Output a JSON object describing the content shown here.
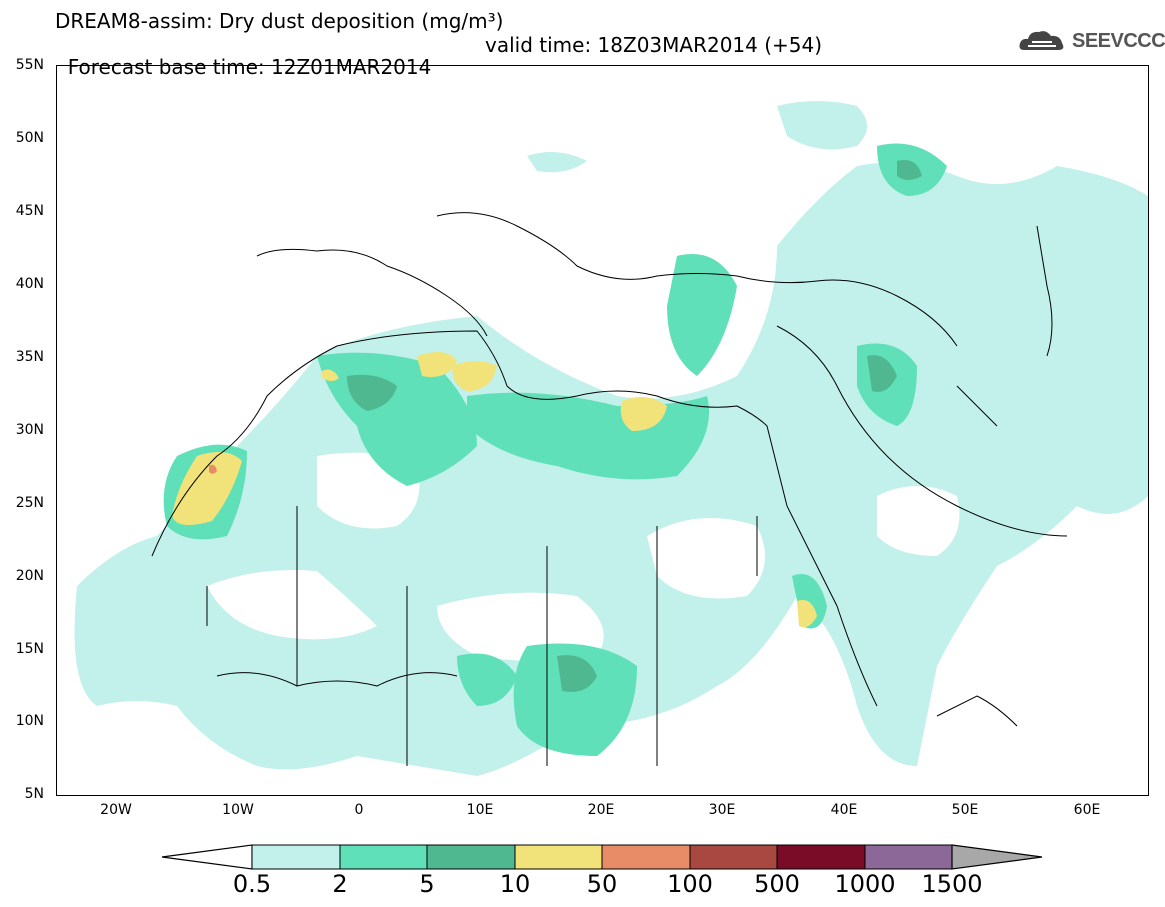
{
  "title": {
    "line1": "DREAM8-assim: Dry dust deposition (mg/m³)",
    "line2_base": "Forecast base time: 12Z01MAR2014",
    "line2_valid": "valid time: 18Z03MAR2014 (+54)"
  },
  "logo_text": "SEEVCCC",
  "lat_labels": [
    "55N",
    "50N",
    "45N",
    "40N",
    "35N",
    "30N",
    "25N",
    "20N",
    "15N",
    "10N",
    "5N"
  ],
  "lon_labels": [
    "20W",
    "10W",
    "0",
    "10E",
    "20E",
    "30E",
    "40E",
    "50E",
    "60E"
  ],
  "colorbar": {
    "labels": [
      "0.5",
      "2",
      "5",
      "10",
      "50",
      "100",
      "500",
      "1000",
      "1500"
    ],
    "colors": [
      "#c2f0ea",
      "#5fe0b8",
      "#50b890",
      "#f2e27a",
      "#e88c68",
      "#a84840",
      "#7a0c28",
      "#8c6898",
      "#a8a8a8"
    ]
  }
}
